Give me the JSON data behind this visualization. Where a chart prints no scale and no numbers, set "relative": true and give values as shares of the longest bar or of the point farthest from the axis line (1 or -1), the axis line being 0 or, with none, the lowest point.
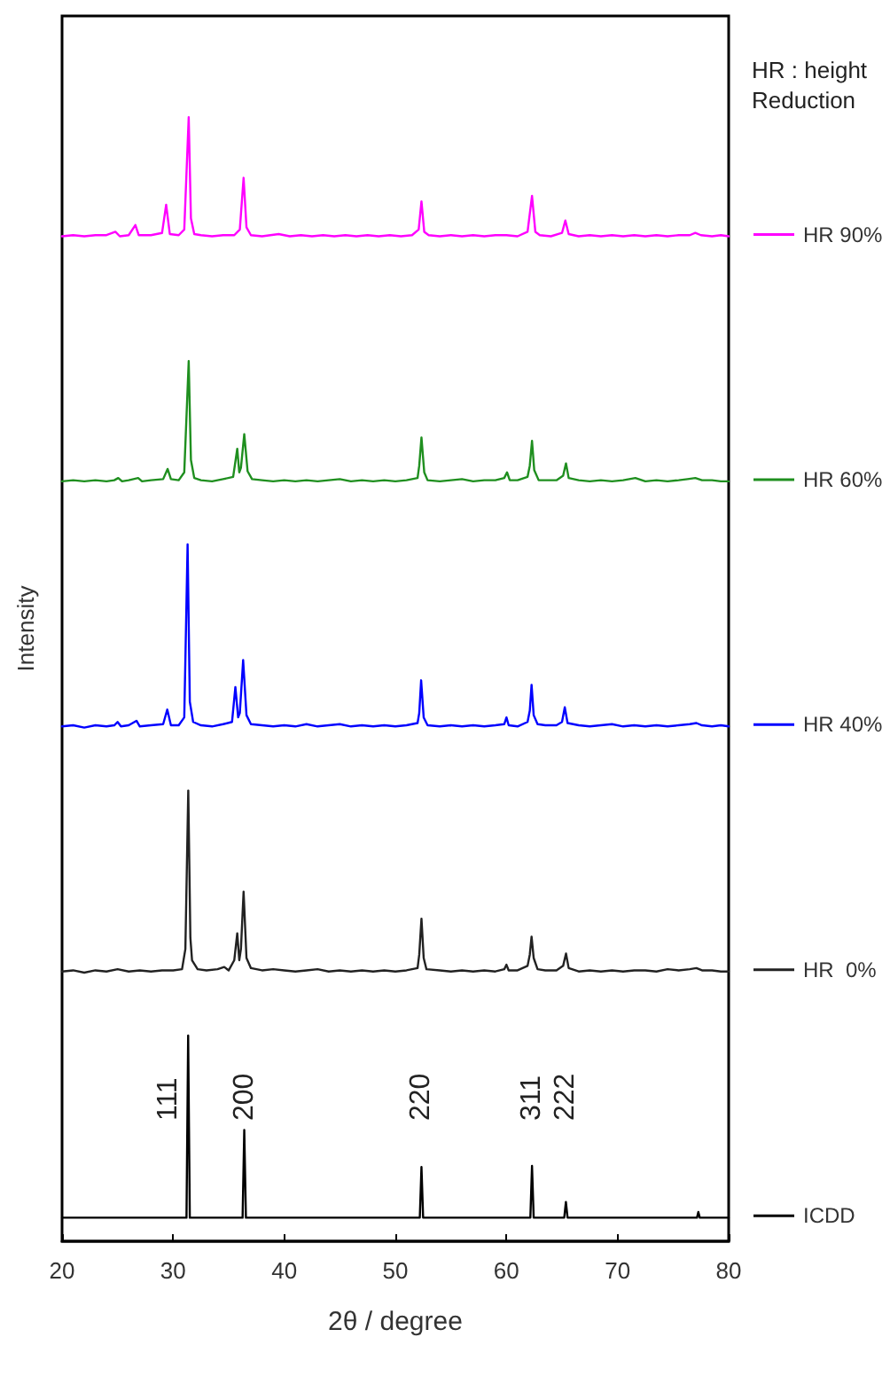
{
  "chart_data": {
    "type": "line",
    "xlabel": "2θ / degree",
    "ylabel": "Intensity",
    "legend_title": "HR : height Reduction",
    "relative": true,
    "xlim": [
      20,
      80
    ],
    "xticks": [
      20,
      30,
      40,
      50,
      60,
      70,
      80
    ],
    "grid": false,
    "legend": "right",
    "marker": "none",
    "line_style": "solid",
    "annotations": [
      {
        "text": "111",
        "x": 31.35,
        "y": 0.183
      },
      {
        "text": "200",
        "x": 36.4,
        "y": 0.099
      },
      {
        "text": "220",
        "x": 52.35,
        "y": 0.066
      },
      {
        "text": "311",
        "x": 62.3,
        "y": 0.067
      },
      {
        "text": "222",
        "x": 65.35,
        "y": 0.035
      }
    ],
    "series": [
      {
        "name": "HR 90%",
        "color": "#ff00ff",
        "x": [
          20,
          21,
          22,
          23,
          24,
          24.8,
          25.2,
          26,
          26.6,
          26.9,
          28,
          29.0,
          29.37,
          29.7,
          30.5,
          31.0,
          31.4,
          31.6,
          31.9,
          32.5,
          33.5,
          34.5,
          35.5,
          36.0,
          36.34,
          36.6,
          37,
          38,
          39.5,
          40.5,
          41.5,
          42.5,
          43.5,
          44.5,
          45.5,
          46.5,
          47.5,
          48.5,
          49.5,
          50.5,
          51.5,
          52.1,
          52.35,
          52.6,
          53,
          54,
          55,
          56,
          57,
          58,
          59,
          60,
          61,
          61.9,
          62.3,
          62.6,
          63,
          64,
          65.0,
          65.3,
          65.6,
          66.5,
          67.5,
          68.5,
          69.5,
          70.5,
          71.5,
          72.5,
          73.5,
          74.5,
          75.5,
          76.5,
          77.0,
          77.5,
          78.5,
          79.3,
          80
        ],
        "values": [
          0.894,
          0.895,
          0.894,
          0.895,
          0.895,
          0.898,
          0.894,
          0.895,
          0.904,
          0.895,
          0.895,
          0.897,
          0.922,
          0.896,
          0.895,
          0.9,
          1.0,
          0.91,
          0.896,
          0.895,
          0.894,
          0.895,
          0.895,
          0.9,
          0.946,
          0.902,
          0.895,
          0.894,
          0.896,
          0.894,
          0.895,
          0.894,
          0.895,
          0.894,
          0.895,
          0.894,
          0.895,
          0.894,
          0.895,
          0.894,
          0.895,
          0.9,
          0.925,
          0.898,
          0.895,
          0.894,
          0.895,
          0.894,
          0.895,
          0.894,
          0.895,
          0.895,
          0.894,
          0.898,
          0.93,
          0.898,
          0.895,
          0.894,
          0.897,
          0.908,
          0.896,
          0.894,
          0.895,
          0.894,
          0.895,
          0.894,
          0.895,
          0.894,
          0.895,
          0.894,
          0.895,
          0.895,
          0.897,
          0.895,
          0.894,
          0.895,
          0.894
        ]
      },
      {
        "name": "HR 60%",
        "color": "#1f8f1f",
        "x": [
          20,
          21,
          22,
          23,
          24,
          24.7,
          25.06,
          25.4,
          26,
          26.85,
          27.2,
          28,
          29.1,
          29.5,
          29.8,
          30.5,
          31.0,
          31.4,
          31.6,
          31.9,
          32.5,
          33.5,
          34.5,
          35.4,
          35.77,
          35.95,
          36.1,
          36.4,
          36.7,
          37.1,
          38,
          39,
          40,
          41,
          42,
          43,
          44,
          45,
          46,
          47,
          48,
          49,
          50,
          51,
          52,
          52.15,
          52.35,
          52.6,
          52.9,
          54,
          55,
          56,
          57,
          58,
          59,
          59.8,
          60.05,
          60.3,
          61,
          61.9,
          62.1,
          62.3,
          62.5,
          62.9,
          63.5,
          64.5,
          65.1,
          65.36,
          65.6,
          66.5,
          67.5,
          68.5,
          69.5,
          70.5,
          71.6,
          72.5,
          73.5,
          74.5,
          75.5,
          76.3,
          77.0,
          77.6,
          78.5,
          79.3,
          80
        ],
        "values": [
          0.676,
          0.677,
          0.676,
          0.677,
          0.676,
          0.677,
          0.679,
          0.676,
          0.677,
          0.679,
          0.676,
          0.677,
          0.678,
          0.687,
          0.678,
          0.677,
          0.684,
          0.783,
          0.695,
          0.679,
          0.677,
          0.676,
          0.678,
          0.68,
          0.705,
          0.684,
          0.688,
          0.718,
          0.685,
          0.678,
          0.677,
          0.676,
          0.677,
          0.676,
          0.677,
          0.676,
          0.677,
          0.678,
          0.676,
          0.677,
          0.676,
          0.677,
          0.676,
          0.677,
          0.679,
          0.69,
          0.715,
          0.684,
          0.677,
          0.676,
          0.677,
          0.678,
          0.676,
          0.677,
          0.677,
          0.679,
          0.684,
          0.677,
          0.677,
          0.68,
          0.69,
          0.712,
          0.686,
          0.677,
          0.677,
          0.677,
          0.681,
          0.692,
          0.679,
          0.677,
          0.676,
          0.677,
          0.676,
          0.677,
          0.679,
          0.676,
          0.677,
          0.676,
          0.677,
          0.678,
          0.679,
          0.677,
          0.677,
          0.676,
          0.676
        ]
      },
      {
        "name": "HR 40%",
        "color": "#0000ff",
        "x": [
          20,
          21,
          22,
          23,
          24,
          24.7,
          25.0,
          25.3,
          26,
          26.7,
          27,
          28,
          29.1,
          29.47,
          29.8,
          30.5,
          31.0,
          31.3,
          31.5,
          31.8,
          32.5,
          33.5,
          34.5,
          35.3,
          35.6,
          35.85,
          36.0,
          36.3,
          36.6,
          37,
          38,
          39,
          40,
          41,
          42,
          43,
          44,
          45,
          46,
          47,
          48,
          49,
          50,
          51,
          52,
          52.15,
          52.32,
          52.55,
          52.9,
          54,
          55,
          56,
          57,
          58,
          59,
          59.8,
          60.0,
          60.2,
          61,
          61.9,
          62.1,
          62.26,
          62.45,
          62.8,
          63.5,
          64.5,
          65.0,
          65.25,
          65.5,
          66.5,
          67.5,
          68.5,
          69.5,
          70.5,
          71.5,
          72.5,
          73.5,
          74.5,
          75.5,
          76.5,
          77.1,
          77.6,
          78.5,
          79.3,
          80
        ],
        "values": [
          0.458,
          0.459,
          0.457,
          0.459,
          0.458,
          0.459,
          0.462,
          0.458,
          0.459,
          0.463,
          0.458,
          0.459,
          0.46,
          0.473,
          0.459,
          0.459,
          0.466,
          0.62,
          0.48,
          0.462,
          0.459,
          0.458,
          0.46,
          0.462,
          0.493,
          0.466,
          0.47,
          0.517,
          0.468,
          0.46,
          0.459,
          0.458,
          0.459,
          0.458,
          0.46,
          0.458,
          0.459,
          0.46,
          0.458,
          0.459,
          0.458,
          0.459,
          0.458,
          0.459,
          0.461,
          0.47,
          0.499,
          0.466,
          0.459,
          0.458,
          0.459,
          0.458,
          0.459,
          0.458,
          0.459,
          0.46,
          0.466,
          0.459,
          0.458,
          0.462,
          0.472,
          0.495,
          0.468,
          0.46,
          0.459,
          0.459,
          0.462,
          0.475,
          0.461,
          0.459,
          0.458,
          0.459,
          0.46,
          0.458,
          0.459,
          0.458,
          0.459,
          0.458,
          0.459,
          0.46,
          0.461,
          0.459,
          0.458,
          0.459,
          0.458
        ]
      },
      {
        "name": "HR  0%",
        "color": "#222222",
        "x": [
          20,
          21,
          22,
          23,
          24,
          25,
          26,
          27,
          28,
          29,
          30,
          30.8,
          31.1,
          31.36,
          31.55,
          31.7,
          32.2,
          33,
          34,
          34.6,
          35,
          35.5,
          35.77,
          35.95,
          36.1,
          36.34,
          36.6,
          37,
          38,
          39,
          40,
          41,
          42,
          43,
          44,
          45,
          46,
          47,
          48,
          49,
          50,
          51,
          52,
          52.15,
          52.35,
          52.55,
          52.8,
          54,
          55,
          56,
          57,
          58,
          59,
          59.8,
          60,
          60.2,
          61,
          61.9,
          62.1,
          62.26,
          62.45,
          62.8,
          63.5,
          64.5,
          65.1,
          65.36,
          65.6,
          66.5,
          67.5,
          68.5,
          69.5,
          70.5,
          71.5,
          72.5,
          73.5,
          74.5,
          75.5,
          76.5,
          77.1,
          77.6,
          78.5,
          79.3,
          80
        ],
        "values": [
          0.24,
          0.241,
          0.239,
          0.241,
          0.24,
          0.242,
          0.24,
          0.241,
          0.24,
          0.241,
          0.241,
          0.242,
          0.26,
          0.401,
          0.27,
          0.25,
          0.242,
          0.241,
          0.242,
          0.244,
          0.241,
          0.25,
          0.274,
          0.25,
          0.26,
          0.311,
          0.252,
          0.243,
          0.241,
          0.242,
          0.241,
          0.24,
          0.241,
          0.242,
          0.24,
          0.241,
          0.24,
          0.241,
          0.24,
          0.241,
          0.24,
          0.241,
          0.243,
          0.255,
          0.287,
          0.252,
          0.242,
          0.241,
          0.24,
          0.241,
          0.24,
          0.241,
          0.24,
          0.242,
          0.246,
          0.241,
          0.241,
          0.245,
          0.255,
          0.271,
          0.252,
          0.242,
          0.241,
          0.241,
          0.245,
          0.256,
          0.243,
          0.24,
          0.241,
          0.24,
          0.241,
          0.24,
          0.241,
          0.241,
          0.24,
          0.242,
          0.241,
          0.242,
          0.243,
          0.241,
          0.241,
          0.24,
          0.24
        ]
      },
      {
        "name": "ICDD",
        "color": "#000000",
        "x": [
          20,
          31.2,
          31.35,
          31.5,
          36.25,
          36.4,
          36.55,
          52.2,
          52.35,
          52.5,
          62.15,
          62.3,
          62.45,
          65.2,
          65.35,
          65.5,
          77.15,
          77.27,
          77.4,
          80
        ],
        "values": [
          0.021,
          0.021,
          0.183,
          0.021,
          0.021,
          0.099,
          0.021,
          0.021,
          0.066,
          0.021,
          0.021,
          0.067,
          0.021,
          0.021,
          0.035,
          0.021,
          0.021,
          0.026,
          0.021,
          0.021
        ]
      }
    ]
  }
}
